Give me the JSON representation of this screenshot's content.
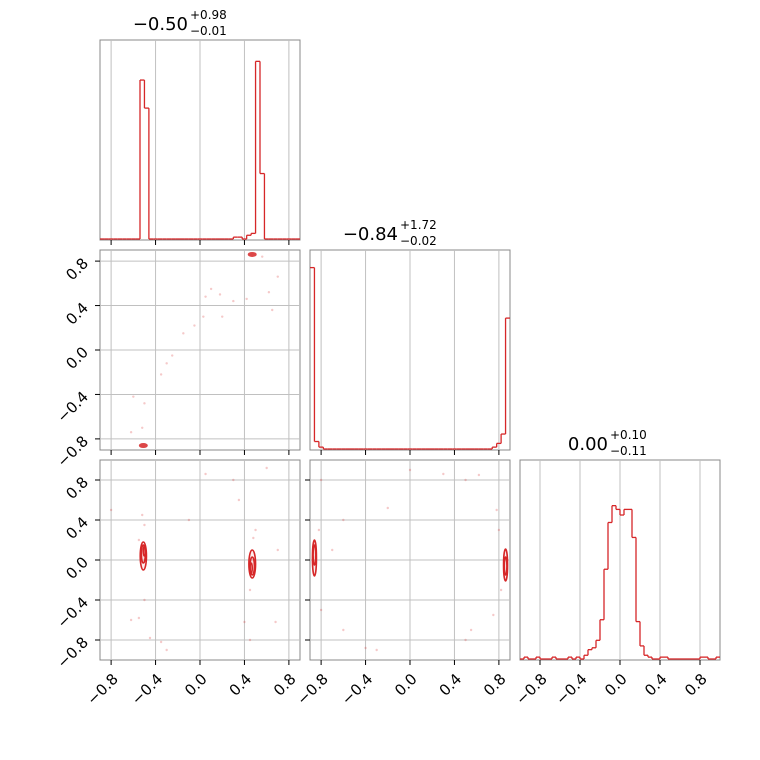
{
  "chart_data": {
    "type": "corner",
    "series_color": "#d62728",
    "grid": true,
    "parameters": [
      {
        "index": 0,
        "median": "−0.50",
        "plus": "+0.98",
        "minus": "−0.01",
        "range": [
          -0.9,
          0.9
        ]
      },
      {
        "index": 1,
        "median": "−0.84",
        "plus": "+1.72",
        "minus": "−0.02",
        "range": [
          -0.9,
          0.9
        ]
      },
      {
        "index": 2,
        "median": "0.00",
        "plus": "+0.10",
        "minus": "−0.11",
        "range": [
          -1.0,
          1.0
        ]
      }
    ],
    "tick_values": {
      "p01": [
        -0.8,
        -0.4,
        0.0,
        0.4,
        0.8
      ],
      "p2": [
        -0.8,
        -0.4,
        0.0,
        0.4,
        0.8
      ]
    },
    "tick_labels": [
      "−0.8",
      "−0.4",
      "0.0",
      "0.4",
      "0.8"
    ],
    "histograms": [
      {
        "param": 0,
        "edges": [
          -0.9,
          -0.86,
          -0.82,
          -0.78,
          -0.74,
          -0.7,
          -0.66,
          -0.62,
          -0.58,
          -0.54,
          -0.5,
          -0.46,
          -0.42,
          -0.38,
          -0.34,
          -0.3,
          -0.26,
          -0.22,
          -0.18,
          -0.14,
          -0.1,
          -0.06,
          -0.02,
          0.02,
          0.06,
          0.1,
          0.14,
          0.18,
          0.22,
          0.26,
          0.3,
          0.34,
          0.38,
          0.42,
          0.46,
          0.5,
          0.54,
          0.58,
          0.62,
          0.66,
          0.7,
          0.74,
          0.78,
          0.82,
          0.86,
          0.9
        ],
        "counts": [
          0,
          0,
          0,
          0,
          0,
          0,
          0,
          0,
          0,
          0.85,
          0.7,
          0,
          0,
          0,
          0,
          0,
          0,
          0,
          0,
          0,
          0,
          0,
          0,
          0,
          0,
          0,
          0,
          0,
          0,
          0,
          0.01,
          0.01,
          0,
          0.02,
          0.03,
          0.95,
          0.35,
          0,
          0,
          0,
          0,
          0,
          0,
          0,
          0
        ]
      },
      {
        "param": 1,
        "edges": [
          -0.9,
          -0.86,
          -0.82,
          -0.78,
          -0.74,
          -0.7,
          -0.66,
          -0.62,
          -0.58,
          -0.54,
          -0.5,
          -0.46,
          -0.42,
          -0.38,
          -0.34,
          -0.3,
          -0.26,
          -0.22,
          -0.18,
          -0.14,
          -0.1,
          -0.06,
          -0.02,
          0.02,
          0.06,
          0.1,
          0.14,
          0.18,
          0.22,
          0.26,
          0.3,
          0.34,
          0.38,
          0.42,
          0.46,
          0.5,
          0.54,
          0.58,
          0.62,
          0.66,
          0.7,
          0.74,
          0.78,
          0.82,
          0.86,
          0.9
        ],
        "counts": [
          0.97,
          0.04,
          0.01,
          0,
          0,
          0,
          0,
          0,
          0,
          0,
          0,
          0,
          0,
          0,
          0,
          0,
          0,
          0,
          0,
          0,
          0,
          0,
          0,
          0,
          0,
          0,
          0,
          0,
          0,
          0,
          0,
          0,
          0,
          0,
          0,
          0,
          0,
          0,
          0,
          0,
          0,
          0.01,
          0.03,
          0.08,
          0.7
        ]
      },
      {
        "param": 2,
        "edges": [
          -1.0,
          -0.96,
          -0.92,
          -0.88,
          -0.84,
          -0.8,
          -0.76,
          -0.72,
          -0.68,
          -0.64,
          -0.6,
          -0.56,
          -0.52,
          -0.48,
          -0.44,
          -0.4,
          -0.36,
          -0.32,
          -0.28,
          -0.24,
          -0.2,
          -0.16,
          -0.12,
          -0.08,
          -0.04,
          0.0,
          0.04,
          0.08,
          0.12,
          0.16,
          0.2,
          0.24,
          0.28,
          0.32,
          0.36,
          0.4,
          0.44,
          0.48,
          0.52,
          0.56,
          0.6,
          0.64,
          0.68,
          0.72,
          0.76,
          0.8,
          0.84,
          0.88,
          0.92,
          0.96,
          1.0
        ],
        "counts": [
          0,
          0.01,
          0,
          0,
          0.01,
          0,
          0,
          0,
          0.01,
          0,
          0,
          0,
          0.01,
          0,
          0.01,
          0,
          0.02,
          0.05,
          0.06,
          0.1,
          0.21,
          0.48,
          0.73,
          0.82,
          0.8,
          0.77,
          0.8,
          0.8,
          0.65,
          0.2,
          0.07,
          0.02,
          0.01,
          0,
          0,
          0.01,
          0.01,
          0,
          0,
          0,
          0,
          0,
          0,
          0,
          0,
          0.01,
          0.01,
          0,
          0,
          0.01
        ]
      }
    ],
    "scatter_panels": [
      {
        "x_param": 0,
        "y_param": 1,
        "clusters": [
          {
            "x": 0.47,
            "y": 0.86
          },
          {
            "x": -0.51,
            "y": -0.86
          }
        ],
        "scattered_points": [
          [
            0.1,
            0.55
          ],
          [
            0.18,
            0.5
          ],
          [
            0.05,
            0.48
          ],
          [
            0.3,
            0.44
          ],
          [
            0.42,
            0.46
          ],
          [
            0.7,
            0.66
          ],
          [
            0.65,
            0.36
          ],
          [
            0.03,
            0.3
          ],
          [
            -0.05,
            0.22
          ],
          [
            -0.15,
            0.15
          ],
          [
            -0.25,
            -0.05
          ],
          [
            -0.3,
            -0.12
          ],
          [
            -0.5,
            -0.48
          ],
          [
            -0.6,
            -0.42
          ],
          [
            -0.52,
            -0.7
          ],
          [
            -0.62,
            -0.74
          ],
          [
            -0.35,
            -0.22
          ],
          [
            0.2,
            0.3
          ],
          [
            0.56,
            0.84
          ],
          [
            0.62,
            0.52
          ]
        ]
      },
      {
        "x_param": 0,
        "y_param": 2,
        "contours": [
          {
            "cx": -0.51,
            "cy": 0.04,
            "rx": 0.028,
            "ry": 0.14
          },
          {
            "cx": -0.51,
            "cy": 0.06,
            "rx": 0.018,
            "ry": 0.09
          },
          {
            "cx": -0.5,
            "cy": 0.09,
            "rx": 0.01,
            "ry": 0.05
          },
          {
            "cx": 0.47,
            "cy": -0.04,
            "rx": 0.03,
            "ry": 0.14
          },
          {
            "cx": 0.47,
            "cy": -0.06,
            "rx": 0.02,
            "ry": 0.09
          },
          {
            "cx": 0.46,
            "cy": -0.08,
            "rx": 0.01,
            "ry": 0.05
          }
        ],
        "scattered_points": [
          [
            -0.8,
            0.5
          ],
          [
            -0.5,
            0.35
          ],
          [
            -0.52,
            0.45
          ],
          [
            -0.5,
            -0.4
          ],
          [
            -0.55,
            -0.58
          ],
          [
            -0.62,
            -0.6
          ],
          [
            -0.45,
            -0.78
          ],
          [
            -0.3,
            -0.9
          ],
          [
            -0.1,
            0.4
          ],
          [
            0.05,
            0.86
          ],
          [
            0.3,
            0.8
          ],
          [
            0.35,
            0.6
          ],
          [
            0.5,
            0.3
          ],
          [
            0.48,
            0.22
          ],
          [
            0.45,
            -0.3
          ],
          [
            0.4,
            -0.62
          ],
          [
            0.45,
            -0.8
          ],
          [
            0.68,
            -0.62
          ],
          [
            0.7,
            0.1
          ],
          [
            -0.35,
            -0.82
          ],
          [
            0.6,
            0.92
          ],
          [
            -0.55,
            0.2
          ]
        ]
      },
      {
        "x_param": 1,
        "y_param": 2,
        "contours": [
          {
            "cx": -0.86,
            "cy": 0.02,
            "rx": 0.018,
            "ry": 0.18
          },
          {
            "cx": -0.86,
            "cy": 0.05,
            "rx": 0.012,
            "ry": 0.1
          },
          {
            "cx": 0.86,
            "cy": -0.05,
            "rx": 0.018,
            "ry": 0.16
          },
          {
            "cx": 0.86,
            "cy": -0.06,
            "rx": 0.012,
            "ry": 0.09
          }
        ],
        "scattered_points": [
          [
            -0.8,
            0.8
          ],
          [
            -0.6,
            0.4
          ],
          [
            -0.2,
            0.52
          ],
          [
            0.0,
            0.9
          ],
          [
            0.3,
            0.86
          ],
          [
            0.5,
            0.8
          ],
          [
            0.78,
            0.5
          ],
          [
            0.8,
            0.3
          ],
          [
            0.82,
            -0.3
          ],
          [
            0.75,
            -0.55
          ],
          [
            0.5,
            -0.8
          ],
          [
            0.55,
            -0.7
          ],
          [
            -0.4,
            -0.88
          ],
          [
            -0.3,
            -0.9
          ],
          [
            -0.6,
            -0.7
          ],
          [
            -0.8,
            -0.5
          ],
          [
            -0.82,
            0.3
          ],
          [
            0.62,
            0.85
          ],
          [
            -0.7,
            0.1
          ]
        ]
      }
    ]
  }
}
